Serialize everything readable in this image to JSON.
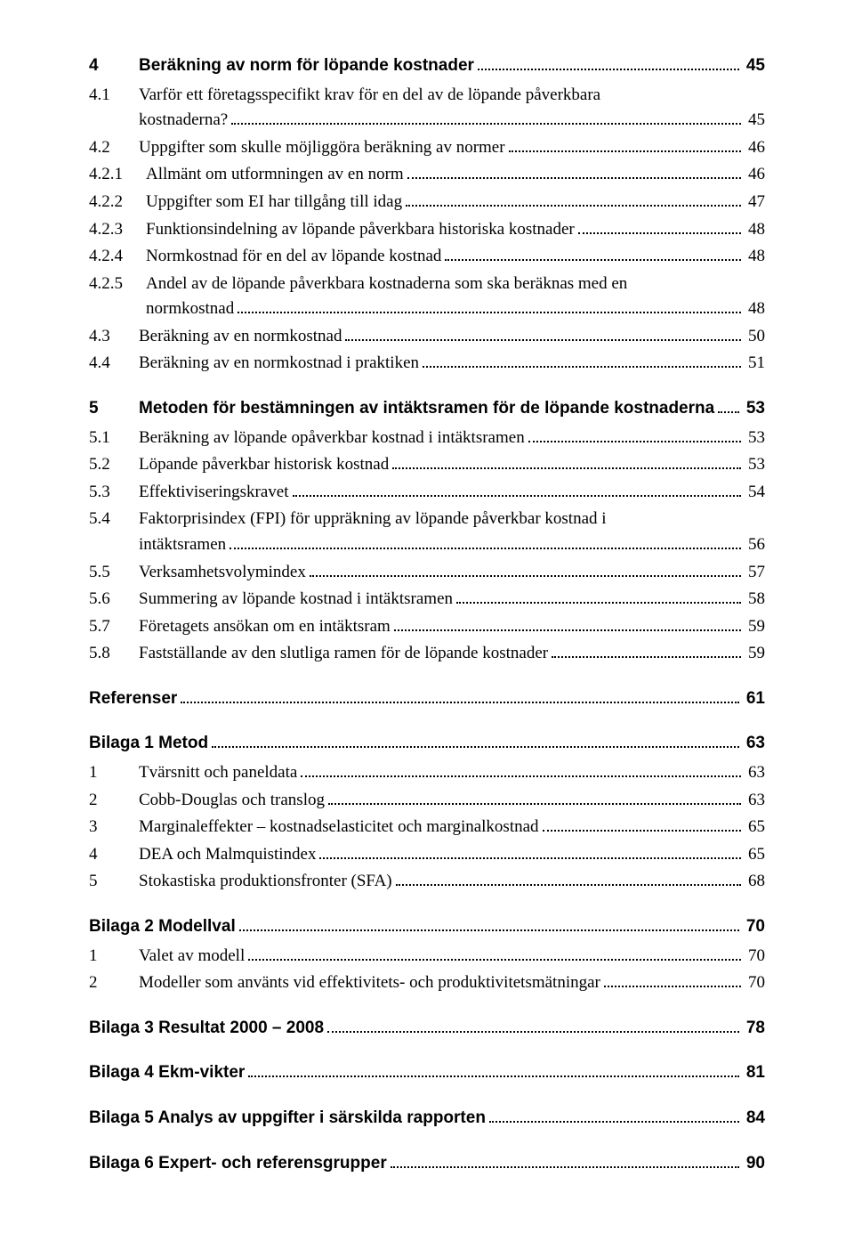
{
  "toc": [
    {
      "level": "h1",
      "num": "4",
      "text": "Beräkning av norm för löpande kostnader",
      "page": "45",
      "first": true
    },
    {
      "level": "l2",
      "num": "4.1",
      "text_lines": [
        "Varför ett företagsspecifikt krav för en del av de löpande påverkbara",
        "kostnaderna?"
      ],
      "page": "45"
    },
    {
      "level": "l2",
      "num": "4.2",
      "text": "Uppgifter som skulle möjliggöra beräkning av normer",
      "page": "46"
    },
    {
      "level": "l2",
      "num": "4.2.1",
      "text": "Allmänt om utformningen av en norm",
      "page": "46"
    },
    {
      "level": "l2",
      "num": "4.2.2",
      "text": "Uppgifter som EI har tillgång till idag",
      "page": "47"
    },
    {
      "level": "l2",
      "num": "4.2.3",
      "text": "Funktionsindelning av löpande påverkbara historiska kostnader",
      "page": "48"
    },
    {
      "level": "l2",
      "num": "4.2.4",
      "text": "Normkostnad för en del av löpande kostnad",
      "page": "48"
    },
    {
      "level": "l2",
      "num": "4.2.5",
      "text_lines": [
        "Andel av de löpande påverkbara kostnaderna som ska beräknas med en",
        "normkostnad"
      ],
      "page": "48"
    },
    {
      "level": "l2",
      "num": "4.3",
      "text": "Beräkning av en normkostnad",
      "page": "50"
    },
    {
      "level": "l2",
      "num": "4.4",
      "text": "Beräkning av en normkostnad i praktiken",
      "page": "51"
    },
    {
      "level": "h1",
      "num": "5",
      "text": "Metoden för bestämningen av intäktsramen för de löpande kostnaderna",
      "page": "53"
    },
    {
      "level": "l2",
      "num": "5.1",
      "text": "Beräkning av löpande opåverkbar kostnad i intäktsramen",
      "page": "53"
    },
    {
      "level": "l2",
      "num": "5.2",
      "text": "Löpande påverkbar historisk kostnad",
      "page": "53"
    },
    {
      "level": "l2",
      "num": "5.3",
      "text": "Effektiviseringskravet",
      "page": "54"
    },
    {
      "level": "l2",
      "num": "5.4",
      "text_lines": [
        "Faktorprisindex (FPI) för uppräkning av löpande påverkbar kostnad i",
        "intäktsramen"
      ],
      "page": "56"
    },
    {
      "level": "l2",
      "num": "5.5",
      "text": "Verksamhetsvolymindex",
      "page": "57"
    },
    {
      "level": "l2",
      "num": "5.6",
      "text": "Summering av löpande kostnad i intäktsramen",
      "page": "58"
    },
    {
      "level": "l2",
      "num": "5.7",
      "text": "Företagets ansökan om en intäktsram",
      "page": "59"
    },
    {
      "level": "l2",
      "num": "5.8",
      "text": "Fastställande av den slutliga ramen för de löpande kostnader",
      "page": "59"
    },
    {
      "level": "h1",
      "num": "",
      "text": "Referenser",
      "page": "61",
      "nonum": true
    },
    {
      "level": "h1",
      "num": "",
      "text": "Bilaga 1 Metod",
      "page": "63",
      "nonum": true
    },
    {
      "level": "l1-serif",
      "num": "1",
      "text": "Tvärsnitt och paneldata",
      "page": "63"
    },
    {
      "level": "l1-serif",
      "num": "2",
      "text": "Cobb-Douglas och translog",
      "page": "63"
    },
    {
      "level": "l1-serif",
      "num": "3",
      "text": "Marginaleffekter – kostnadselasticitet och marginalkostnad",
      "page": "65"
    },
    {
      "level": "l1-serif",
      "num": "4",
      "text": "DEA och Malmquistindex",
      "page": "65"
    },
    {
      "level": "l1-serif",
      "num": "5",
      "text": "Stokastiska produktionsfronter (SFA)",
      "page": "68"
    },
    {
      "level": "h1",
      "num": "",
      "text": "Bilaga 2 Modellval",
      "page": "70",
      "nonum": true
    },
    {
      "level": "l1-serif",
      "num": "1",
      "text": "Valet av modell",
      "page": "70"
    },
    {
      "level": "l1-serif",
      "num": "2",
      "text": "Modeller som använts vid effektivitets- och produktivitetsmätningar",
      "page": "70"
    },
    {
      "level": "h1",
      "num": "",
      "text": "Bilaga 3 Resultat 2000 – 2008",
      "page": "78",
      "nonum": true
    },
    {
      "level": "h1",
      "num": "",
      "text": "Bilaga 4 Ekm-vikter",
      "page": "81",
      "nonum": true
    },
    {
      "level": "h1",
      "num": "",
      "text": "Bilaga 5 Analys av uppgifter i särskilda rapporten",
      "page": "84",
      "nonum": true
    },
    {
      "level": "h1",
      "num": "",
      "text": "Bilaga 6 Expert- och referensgrupper",
      "page": "90",
      "nonum": true
    }
  ]
}
